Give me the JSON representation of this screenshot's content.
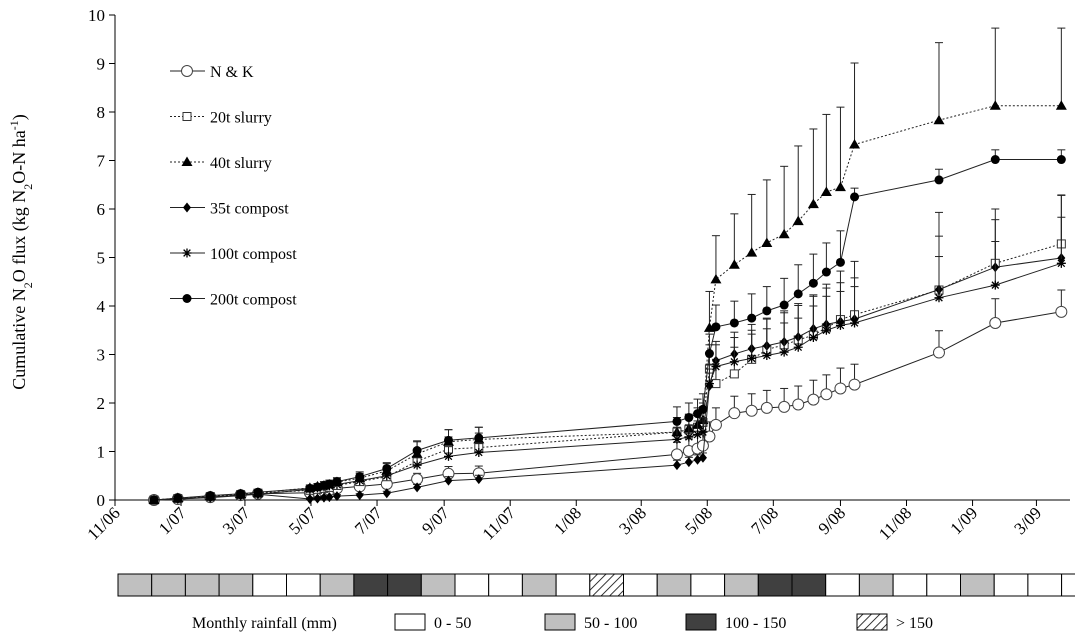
{
  "chart_data": {
    "type": "line",
    "title": "",
    "ylabel_parts": [
      "Cumulative N",
      "2",
      "O flux (kg N",
      "2",
      "O-N ha",
      "-1",
      ")"
    ],
    "xlabel": "",
    "ylim": [
      0,
      10
    ],
    "yticks": [
      "0",
      "1",
      "2",
      "3",
      "4",
      "5",
      "6",
      "7",
      "8",
      "9",
      "10"
    ],
    "x_range": [
      "2006-11-01",
      "2009-04-01"
    ],
    "xticks": [
      {
        "date": "2006-11-01",
        "label": "11/06"
      },
      {
        "date": "2007-01-01",
        "label": "1/07"
      },
      {
        "date": "2007-03-01",
        "label": "3/07"
      },
      {
        "date": "2007-05-01",
        "label": "5/07"
      },
      {
        "date": "2007-07-01",
        "label": "7/07"
      },
      {
        "date": "2007-09-01",
        "label": "9/07"
      },
      {
        "date": "2007-11-01",
        "label": "11/07"
      },
      {
        "date": "2008-01-01",
        "label": "1/08"
      },
      {
        "date": "2008-03-01",
        "label": "3/08"
      },
      {
        "date": "2008-05-01",
        "label": "5/08"
      },
      {
        "date": "2008-07-01",
        "label": "7/08"
      },
      {
        "date": "2008-09-01",
        "label": "9/08"
      },
      {
        "date": "2008-11-01",
        "label": "11/08"
      },
      {
        "date": "2009-01-01",
        "label": "1/09"
      },
      {
        "date": "2009-03-01",
        "label": "3/09"
      }
    ],
    "x": [
      "2006-12-07",
      "2006-12-29",
      "2007-01-28",
      "2007-02-25",
      "2007-03-13",
      "2007-04-30",
      "2007-05-07",
      "2007-05-13",
      "2007-05-18",
      "2007-05-25",
      "2007-06-15",
      "2007-07-10",
      "2007-08-07",
      "2007-09-05",
      "2007-10-03",
      "2008-04-03",
      "2008-04-14",
      "2008-04-22",
      "2008-04-27",
      "2008-05-03",
      "2008-05-09",
      "2008-05-26",
      "2008-06-11",
      "2008-06-25",
      "2008-07-11",
      "2008-07-24",
      "2008-08-07",
      "2008-08-19",
      "2008-09-01",
      "2008-09-14",
      "2008-12-01",
      "2009-01-22",
      "2009-03-24"
    ],
    "series": [
      {
        "name": "N & K",
        "marker": "circle-open",
        "dash": "solid",
        "values": [
          0,
          0.02,
          0.06,
          0.1,
          0.13,
          0.15,
          0.17,
          0.19,
          0.21,
          0.24,
          0.28,
          0.33,
          0.43,
          0.54,
          0.55,
          0.94,
          1.01,
          1.06,
          1.12,
          1.31,
          1.55,
          1.79,
          1.84,
          1.9,
          1.92,
          1.97,
          2.07,
          2.18,
          2.3,
          2.38,
          3.04,
          3.65,
          3.88
        ],
        "err": [
          0.03,
          0.04,
          0.04,
          0.04,
          0.05,
          0.05,
          0.05,
          0.06,
          0.06,
          0.07,
          0.08,
          0.1,
          0.12,
          0.15,
          0.15,
          0.25,
          0.25,
          0.28,
          0.3,
          0.3,
          0.35,
          0.35,
          0.35,
          0.36,
          0.38,
          0.38,
          0.4,
          0.4,
          0.42,
          0.42,
          0.45,
          0.5,
          0.45
        ]
      },
      {
        "name": "20t slurry",
        "marker": "square-open",
        "dash": "dotted",
        "values": [
          0,
          0.03,
          0.07,
          0.11,
          0.14,
          0.2,
          0.22,
          0.24,
          0.26,
          0.3,
          0.38,
          0.48,
          0.8,
          1.05,
          1.08,
          1.4,
          1.45,
          1.5,
          1.6,
          2.7,
          2.4,
          2.6,
          2.9,
          3.1,
          3.2,
          3.3,
          3.4,
          3.55,
          3.72,
          3.82,
          4.33,
          4.88,
          5.28
        ],
        "err": [
          0.03,
          0.04,
          0.05,
          0.05,
          0.05,
          0.06,
          0.06,
          0.07,
          0.07,
          0.08,
          0.1,
          0.12,
          0.2,
          0.25,
          0.3,
          0.3,
          0.3,
          0.3,
          0.32,
          0.5,
          0.5,
          0.55,
          0.6,
          0.65,
          0.7,
          0.75,
          0.8,
          0.9,
          1.0,
          1.1,
          1.6,
          0.9,
          1.0
        ]
      },
      {
        "name": "40t slurry",
        "marker": "triangle-filled",
        "dash": "dotted",
        "values": [
          0,
          0.04,
          0.08,
          0.12,
          0.15,
          0.25,
          0.28,
          0.3,
          0.32,
          0.37,
          0.45,
          0.6,
          0.95,
          1.2,
          1.25,
          1.4,
          1.47,
          1.55,
          1.65,
          3.55,
          4.55,
          4.85,
          5.1,
          5.3,
          5.48,
          5.75,
          6.1,
          6.35,
          6.45,
          7.33,
          7.83,
          8.13,
          8.13
        ],
        "err": [
          0.03,
          0.04,
          0.05,
          0.05,
          0.05,
          0.06,
          0.06,
          0.07,
          0.07,
          0.08,
          0.1,
          0.15,
          0.25,
          0.25,
          0.25,
          0.3,
          0.3,
          0.35,
          0.35,
          0.75,
          0.9,
          1.05,
          1.2,
          1.3,
          1.4,
          1.55,
          1.55,
          1.6,
          1.65,
          1.68,
          1.6,
          1.6,
          1.6
        ]
      },
      {
        "name": "35t compost",
        "marker": "diamond-filled",
        "dash": "solid",
        "values": [
          0,
          0.02,
          0.05,
          0.09,
          0.12,
          0.02,
          0.03,
          0.05,
          0.06,
          0.08,
          0.1,
          0.14,
          0.26,
          0.4,
          0.43,
          0.72,
          0.78,
          0.83,
          0.87,
          2.35,
          2.87,
          3.01,
          3.12,
          3.18,
          3.26,
          3.36,
          3.53,
          3.62,
          3.68,
          3.73,
          4.34,
          4.8,
          4.99
        ],
        "err": [
          0.02,
          0.03,
          0.03,
          0.04,
          0.04,
          0.02,
          0.02,
          0.02,
          0.02,
          0.03,
          0.03,
          0.04,
          0.06,
          0.08,
          0.08,
          0.1,
          0.1,
          0.1,
          0.1,
          0.35,
          0.4,
          0.45,
          0.5,
          0.55,
          0.6,
          0.65,
          0.7,
          0.75,
          0.8,
          0.85,
          1.1,
          1.2,
          1.3
        ]
      },
      {
        "name": "100t compost",
        "marker": "asterisk",
        "dash": "solid",
        "values": [
          0,
          0.02,
          0.06,
          0.1,
          0.12,
          0.22,
          0.25,
          0.27,
          0.29,
          0.32,
          0.4,
          0.5,
          0.72,
          0.9,
          0.98,
          1.25,
          1.3,
          1.35,
          1.4,
          2.4,
          2.75,
          2.85,
          2.92,
          2.98,
          3.05,
          3.15,
          3.35,
          3.5,
          3.6,
          3.65,
          4.17,
          4.43,
          4.88
        ],
        "err": [
          0.02,
          0.03,
          0.04,
          0.04,
          0.05,
          0.06,
          0.06,
          0.06,
          0.07,
          0.07,
          0.08,
          0.1,
          0.15,
          0.2,
          0.2,
          0.25,
          0.25,
          0.28,
          0.3,
          0.4,
          0.45,
          0.5,
          0.5,
          0.55,
          0.6,
          0.6,
          0.65,
          0.7,
          0.7,
          0.75,
          0.85,
          0.9,
          0.95
        ]
      },
      {
        "name": "200t compost",
        "marker": "circle-filled",
        "dash": "solid",
        "values": [
          0,
          0.04,
          0.09,
          0.13,
          0.16,
          0.24,
          0.27,
          0.3,
          0.33,
          0.38,
          0.48,
          0.65,
          1.02,
          1.23,
          1.28,
          1.62,
          1.7,
          1.78,
          1.87,
          3.02,
          3.57,
          3.65,
          3.75,
          3.9,
          4.02,
          4.25,
          4.47,
          4.7,
          4.9,
          6.25,
          6.6,
          7.02,
          7.02
        ],
        "err": [
          0.03,
          0.04,
          0.05,
          0.05,
          0.05,
          0.07,
          0.07,
          0.08,
          0.08,
          0.08,
          0.1,
          0.12,
          0.2,
          0.22,
          0.22,
          0.3,
          0.3,
          0.3,
          0.32,
          0.4,
          0.45,
          0.45,
          0.5,
          0.5,
          0.55,
          0.6,
          0.6,
          0.6,
          0.65,
          0.18,
          0.22,
          0.2,
          0.2
        ]
      }
    ],
    "legend_position": "top-left"
  },
  "rainfall": {
    "title": "Monthly rainfall (mm)",
    "start_month": "2006-11",
    "months": [
      "gray",
      "gray",
      "gray",
      "gray",
      "white",
      "white",
      "gray",
      "dark",
      "dark",
      "gray",
      "white",
      "white",
      "gray",
      "white",
      "hatch",
      "white",
      "gray",
      "white",
      "gray",
      "dark",
      "dark",
      "white",
      "gray",
      "white",
      "white",
      "gray",
      "white",
      "white",
      "white"
    ],
    "categories": [
      {
        "key": "white",
        "label": "0 - 50",
        "color": "#ffffff"
      },
      {
        "key": "gray",
        "label": "50 - 100",
        "color": "#c0c0c0"
      },
      {
        "key": "dark",
        "label": "100 - 150",
        "color": "#404040"
      },
      {
        "key": "hatch",
        "label": "> 150",
        "color": "hatched"
      }
    ]
  }
}
